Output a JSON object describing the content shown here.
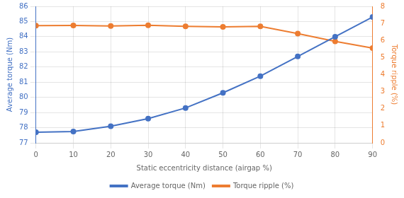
{
  "chart_data": {
    "type": "line",
    "xlabel": "Static eccentricity distance (airgap %)",
    "ylabel": "Average torque (Nm)",
    "y2label": "Torque ripple (%)",
    "x": [
      0,
      10,
      20,
      30,
      40,
      50,
      60,
      70,
      80,
      90
    ],
    "series": [
      {
        "name": "Average torque (Nm)",
        "color": "#4472C4",
        "marker": "circle",
        "axis": "y",
        "values": [
          77.7,
          77.75,
          78.1,
          78.6,
          79.3,
          80.3,
          81.4,
          82.7,
          84.0,
          85.3
        ]
      },
      {
        "name": "Torque ripple (%)",
        "color": "#ED7D31",
        "marker": "circle",
        "axis": "y2",
        "values": [
          6.87,
          6.88,
          6.85,
          6.89,
          6.83,
          6.8,
          6.83,
          6.4,
          5.95,
          5.55
        ]
      }
    ],
    "xlim": [
      0,
      90
    ],
    "xticks": [
      0,
      10,
      20,
      30,
      40,
      50,
      60,
      70,
      80,
      90
    ],
    "ylim": [
      77,
      86
    ],
    "yticks": [
      77,
      78,
      79,
      80,
      81,
      82,
      83,
      84,
      85,
      86
    ],
    "y2lim": [
      0,
      8
    ],
    "y2ticks": [
      0,
      1,
      2,
      3,
      4,
      5,
      6,
      7,
      8
    ],
    "grid": true,
    "legend": "bottom"
  }
}
